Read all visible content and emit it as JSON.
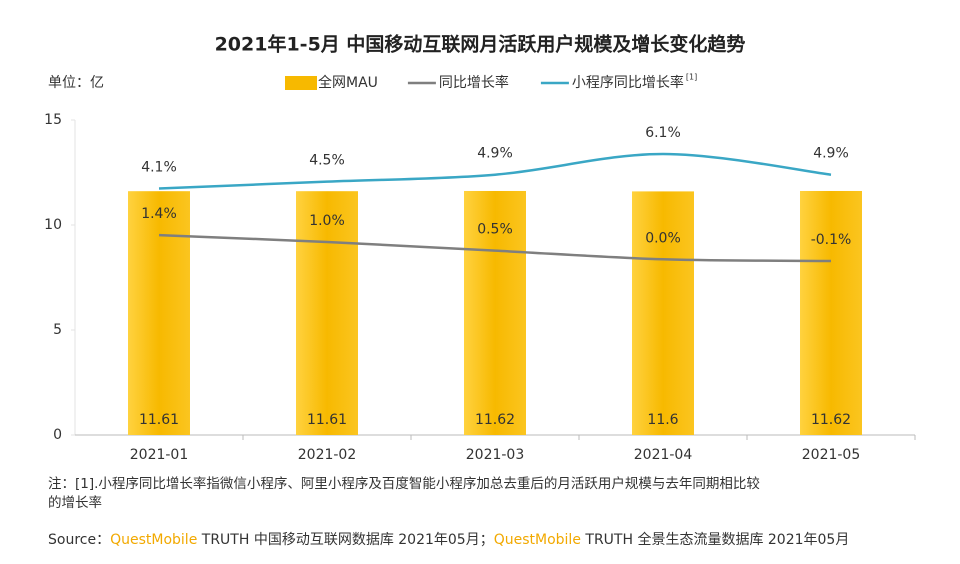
{
  "chart_data": {
    "type": "bar-line",
    "title": "2021年1-5月 中国移动互联网月活跃用户规模及增长变化趋势",
    "unit_label": "单位：亿",
    "categories": [
      "2021-01",
      "2021-02",
      "2021-03",
      "2021-04",
      "2021-05"
    ],
    "series": [
      {
        "name": "全网MAU",
        "type": "bar",
        "color": "#f7b900",
        "values": [
          11.61,
          11.61,
          11.62,
          11.6,
          11.62
        ]
      },
      {
        "name": "同比增长率",
        "type": "line",
        "color": "#7f7f7f",
        "values": [
          1.4,
          1.0,
          0.5,
          0.0,
          -0.1
        ],
        "value_labels": [
          "1.4%",
          "1.0%",
          "0.5%",
          "0.0%",
          "-0.1%"
        ]
      },
      {
        "name": "小程序同比增长率",
        "superscript": "[1]",
        "type": "line",
        "color": "#3aa7c5",
        "values": [
          4.1,
          4.5,
          4.9,
          6.1,
          4.9
        ],
        "value_labels": [
          "4.1%",
          "4.5%",
          "4.9%",
          "6.1%",
          "4.9%"
        ]
      }
    ],
    "ylim": [
      0,
      15
    ],
    "yticks": [
      0,
      5,
      10,
      15
    ],
    "grid": false,
    "note": [
      "注：[1].小程序同比增长率指微信小程序、阿里小程序及百度智能小程序加总去重后的月活跃用户规模与去年同期相比较",
      "的增长率"
    ],
    "source": [
      {
        "text": "Source：",
        "color": "#333333"
      },
      {
        "text": "QuestMobile",
        "color": "#f2a900"
      },
      {
        "text": " TRUTH 中国移动互联网数据库 2021年05月；",
        "color": "#333333"
      },
      {
        "text": "QuestMobile",
        "color": "#f2a900"
      },
      {
        "text": " TRUTH 全景生态流量数据库 2021年05月",
        "color": "#333333"
      }
    ]
  }
}
